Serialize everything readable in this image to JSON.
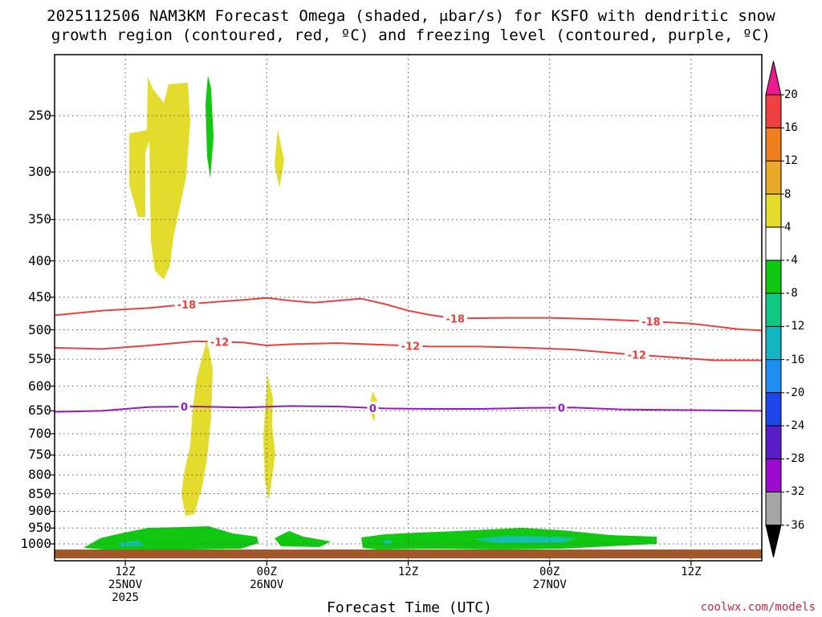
{
  "chart_data": {
    "type": "heatmap",
    "title": "2025112506 NAM3KM Forecast Omega (shaded, μbar/s) for KSFO with dendritic snow",
    "subtitle": "growth region (contoured, red, ºC) and freezing level (contoured, purple, ºC)",
    "xlabel": "Forecast Time (UTC)",
    "ylabel": "",
    "y_scale": "log",
    "ylim": [
      1000,
      200
    ],
    "y_ticks": [
      250,
      300,
      350,
      400,
      450,
      500,
      550,
      600,
      650,
      700,
      750,
      800,
      850,
      900,
      950,
      1000
    ],
    "x_tick_labels": [
      {
        "hour": 6,
        "lines": [
          "12Z",
          "25NOV",
          "2025"
        ]
      },
      {
        "hour": 18,
        "lines": [
          "00Z",
          "26NOV"
        ]
      },
      {
        "hour": 30,
        "lines": [
          "12Z"
        ]
      },
      {
        "hour": 42,
        "lines": [
          "00Z",
          "27NOV"
        ]
      },
      {
        "hour": 54,
        "lines": [
          "12Z"
        ]
      }
    ],
    "xlim_hours": [
      0,
      60
    ],
    "grid": true,
    "colorbar": {
      "levels": [
        20,
        16,
        12,
        8,
        4,
        -4,
        -8,
        -12,
        -16,
        -20,
        -24,
        -28,
        -32,
        -36
      ],
      "colors": [
        "#ee1a8c",
        "#ef4141",
        "#f07f20",
        "#e8a828",
        "#e3dc2c",
        "#ffffff",
        "#10c810",
        "#10c882",
        "#14b4c0",
        "#1e8ef0",
        "#1e46e8",
        "#5a1ec8",
        "#9b0ccf",
        "#a5a5a5",
        "#000000"
      ]
    },
    "contours": [
      {
        "label": "-18",
        "color": "#e8413c",
        "points": [
          [
            0,
            477
          ],
          [
            4,
            470
          ],
          [
            8,
            466
          ],
          [
            12,
            459
          ],
          [
            16,
            454
          ],
          [
            18,
            451
          ],
          [
            20,
            455
          ],
          [
            22,
            458
          ],
          [
            24,
            455
          ],
          [
            26,
            452
          ],
          [
            28,
            460
          ],
          [
            30,
            470
          ],
          [
            32,
            477
          ],
          [
            34,
            482
          ],
          [
            38,
            481
          ],
          [
            42,
            481
          ],
          [
            46,
            483
          ],
          [
            50,
            486
          ],
          [
            54,
            490
          ],
          [
            58,
            499
          ],
          [
            60,
            501
          ]
        ]
      },
      {
        "label": "-12",
        "color": "#e8413c",
        "points": [
          [
            0,
            530
          ],
          [
            4,
            532
          ],
          [
            8,
            526
          ],
          [
            12,
            519
          ],
          [
            16,
            521
          ],
          [
            18,
            526
          ],
          [
            20,
            524
          ],
          [
            24,
            522
          ],
          [
            28,
            525
          ],
          [
            32,
            528
          ],
          [
            36,
            528
          ],
          [
            40,
            530
          ],
          [
            44,
            533
          ],
          [
            48,
            540
          ],
          [
            52,
            546
          ],
          [
            56,
            552
          ],
          [
            60,
            552
          ]
        ]
      },
      {
        "label": "0",
        "color": "#9518c2",
        "points": [
          [
            0,
            652
          ],
          [
            4,
            650
          ],
          [
            8,
            642
          ],
          [
            12,
            641
          ],
          [
            16,
            643
          ],
          [
            20,
            640
          ],
          [
            24,
            641
          ],
          [
            28,
            645
          ],
          [
            32,
            646
          ],
          [
            36,
            646
          ],
          [
            40,
            644
          ],
          [
            44,
            643
          ],
          [
            48,
            647
          ],
          [
            52,
            648
          ],
          [
            56,
            649
          ],
          [
            60,
            650
          ]
        ]
      }
    ]
  },
  "credit": "coolwx.com/models"
}
